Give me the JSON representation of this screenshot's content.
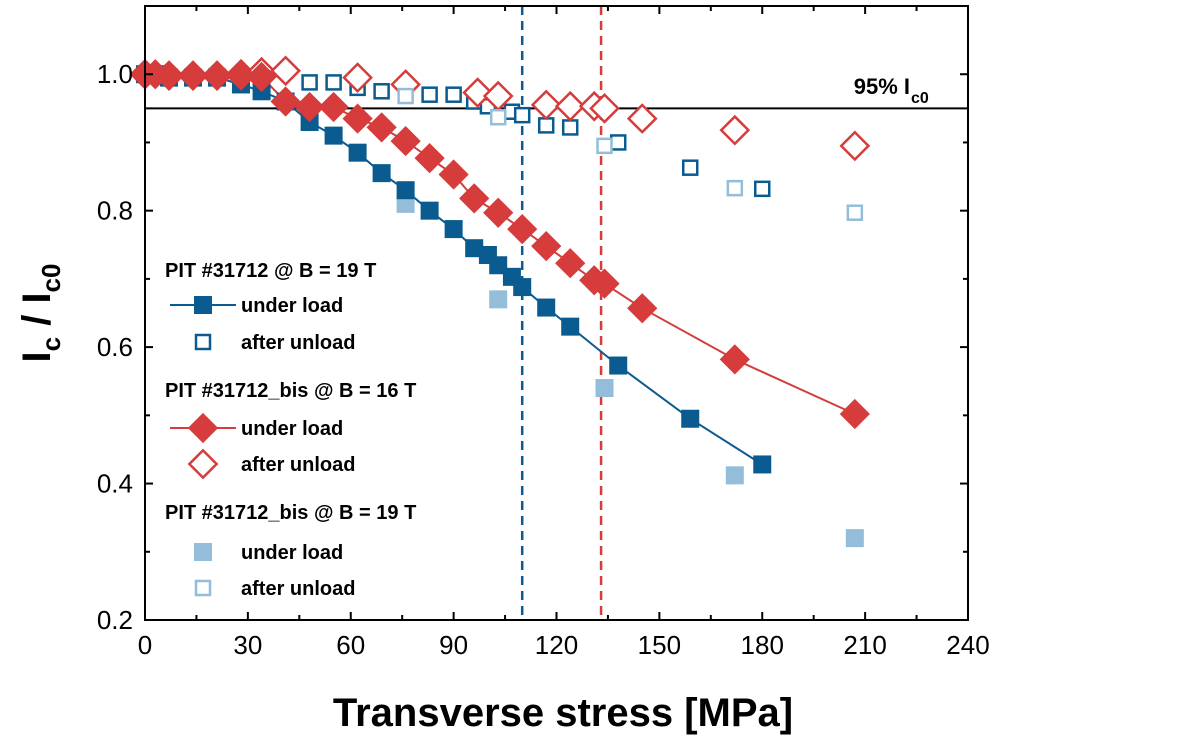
{
  "chart_data": {
    "type": "scatter",
    "xlabel": "Transverse stress [MPa]",
    "ylabel": {
      "main": "I",
      "sub1": "c",
      "sep": " / I",
      "sub2": "c0"
    },
    "xlim": [
      0,
      240
    ],
    "ylim": [
      0.2,
      1.1
    ],
    "x_ticks": [
      0,
      30,
      60,
      90,
      120,
      150,
      180,
      210,
      240
    ],
    "y_ticks": [
      0.2,
      0.4,
      0.6,
      0.8,
      1.0
    ],
    "y_tick_labels": [
      "0.2",
      "0.4",
      "0.6",
      "0.8",
      "1.0"
    ],
    "x_minor_step": 15,
    "y_minor_step": 0.1,
    "colors": {
      "dark_blue": "#0a5b8f",
      "red": "#d63c3c",
      "light_blue": "#93bdd9",
      "black": "#000000"
    },
    "reference_line": {
      "y": 0.95,
      "label": "95% I",
      "label_sub": "c0"
    },
    "vertical_lines": [
      {
        "x": 110,
        "color": "#0a5b8f"
      },
      {
        "x": 133,
        "color": "#d63c3c"
      }
    ],
    "groups": [
      {
        "title": "PIT #31712 @ B = 19 T"
      },
      {
        "title": "PIT #31712_bis @ B = 16 T"
      },
      {
        "title": "PIT #31712_bis @ B = 19 T"
      }
    ],
    "series": [
      {
        "name": "under load",
        "group": 0,
        "marker": "square",
        "filled": true,
        "line": true,
        "color": "#0a5b8f",
        "x": [
          0,
          3,
          7,
          14,
          21,
          28,
          34,
          41,
          48,
          55,
          62,
          69,
          76,
          83,
          90,
          96,
          100,
          103,
          107,
          110,
          117,
          124,
          138,
          159,
          180
        ],
        "y": [
          1.0,
          1.0,
          0.995,
          0.995,
          0.995,
          0.985,
          0.975,
          0.96,
          0.93,
          0.91,
          0.885,
          0.855,
          0.83,
          0.8,
          0.773,
          0.745,
          0.735,
          0.72,
          0.703,
          0.688,
          0.658,
          0.63,
          0.573,
          0.495,
          0.428
        ]
      },
      {
        "name": "after unload",
        "group": 0,
        "marker": "square",
        "filled": false,
        "line": false,
        "color": "#0a5b8f",
        "x": [
          0,
          7,
          14,
          48,
          55,
          62,
          69,
          83,
          90,
          96,
          100,
          107,
          110,
          117,
          124,
          138,
          159,
          180
        ],
        "y": [
          1.0,
          0.995,
          0.995,
          0.988,
          0.988,
          0.98,
          0.975,
          0.97,
          0.97,
          0.96,
          0.953,
          0.945,
          0.94,
          0.925,
          0.922,
          0.9,
          0.863,
          0.832
        ]
      },
      {
        "name": "under load",
        "group": 1,
        "marker": "diamond",
        "filled": true,
        "line": true,
        "color": "#d63c3c",
        "x": [
          0,
          3,
          7,
          14,
          21,
          28,
          34,
          41,
          48,
          55,
          62,
          69,
          76,
          83,
          90,
          96,
          103,
          110,
          117,
          124,
          131,
          134,
          145,
          172,
          207
        ],
        "y": [
          1.0,
          1.0,
          0.998,
          0.998,
          0.998,
          0.998,
          0.996,
          0.96,
          0.952,
          0.952,
          0.935,
          0.922,
          0.902,
          0.877,
          0.853,
          0.818,
          0.797,
          0.773,
          0.748,
          0.723,
          0.698,
          0.693,
          0.657,
          0.582,
          0.502
        ]
      },
      {
        "name": "after unload",
        "group": 1,
        "marker": "diamond",
        "filled": false,
        "line": false,
        "color": "#d63c3c",
        "x": [
          0,
          7,
          14,
          21,
          28,
          34,
          41,
          62,
          76,
          97,
          103,
          117,
          124,
          131,
          134,
          145,
          172,
          207
        ],
        "y": [
          1.0,
          0.998,
          0.998,
          0.998,
          1.0,
          1.003,
          1.005,
          0.995,
          0.985,
          0.973,
          0.968,
          0.955,
          0.953,
          0.953,
          0.95,
          0.935,
          0.918,
          0.895
        ]
      },
      {
        "name": "under load",
        "group": 2,
        "marker": "square",
        "filled": true,
        "line": false,
        "color": "#93bdd9",
        "x": [
          76,
          103,
          134,
          172,
          207
        ],
        "y": [
          0.81,
          0.67,
          0.54,
          0.412,
          0.32
        ]
      },
      {
        "name": "after unload",
        "group": 2,
        "marker": "square",
        "filled": false,
        "line": false,
        "color": "#93bdd9",
        "x": [
          21,
          76,
          103,
          134,
          172,
          207
        ],
        "y": [
          0.998,
          0.968,
          0.937,
          0.895,
          0.833,
          0.797
        ]
      }
    ]
  }
}
